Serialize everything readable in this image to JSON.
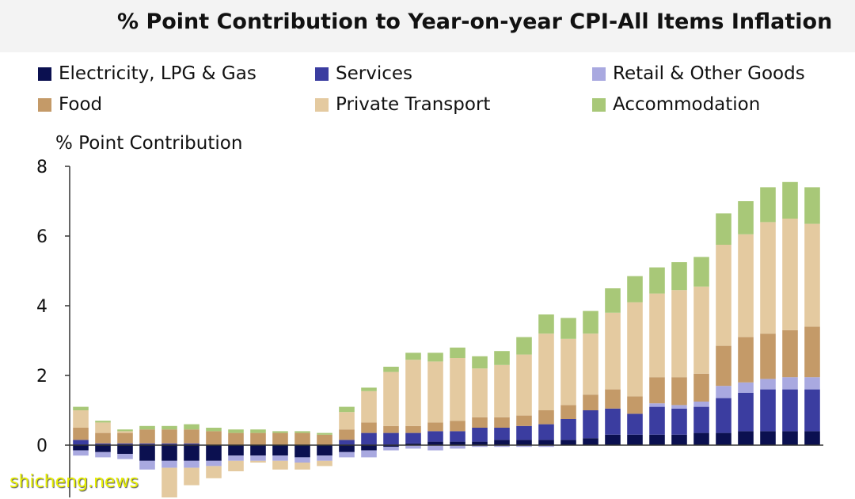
{
  "title": "% Point Contribution to Year-on-year CPI-All Items Inflation",
  "watermark": "shicheng.news",
  "chart_data": {
    "type": "bar",
    "stacked": true,
    "ylabel": "% Point Contribution",
    "ylim": [
      -1.5,
      8
    ],
    "yticks": [
      0,
      2,
      4,
      6,
      8
    ],
    "grid": false,
    "legend_position": "top",
    "series": [
      {
        "name": "Electricity, LPG & Gas",
        "color": "#0b1050",
        "values": [
          -0.15,
          -0.2,
          -0.25,
          -0.45,
          -0.45,
          -0.45,
          -0.45,
          -0.3,
          -0.3,
          -0.3,
          -0.35,
          -0.3,
          -0.2,
          -0.15,
          -0.05,
          0.05,
          0.1,
          0.1,
          0.1,
          0.15,
          0.15,
          0.15,
          0.15,
          0.2,
          0.3,
          0.3,
          0.3,
          0.3,
          0.35,
          0.35,
          0.4,
          0.4,
          0.4,
          0.4
        ]
      },
      {
        "name": "Services",
        "color": "#3b3da0",
        "values": [
          0.15,
          0.05,
          0.05,
          0.05,
          0.05,
          0.05,
          0.0,
          0.0,
          0.0,
          0.0,
          0.0,
          0.0,
          0.15,
          0.35,
          0.35,
          0.3,
          0.3,
          0.3,
          0.4,
          0.35,
          0.4,
          0.45,
          0.6,
          0.8,
          0.75,
          0.6,
          0.8,
          0.75,
          0.75,
          1.0,
          1.1,
          1.2,
          1.2,
          1.2
        ]
      },
      {
        "name": "Retail & Other Goods",
        "color": "#a9a9e0",
        "values": [
          -0.15,
          -0.15,
          -0.15,
          -0.25,
          -0.2,
          -0.2,
          -0.15,
          -0.15,
          -0.15,
          -0.15,
          -0.15,
          -0.15,
          -0.15,
          -0.2,
          -0.1,
          -0.1,
          -0.15,
          -0.1,
          -0.05,
          -0.05,
          -0.05,
          -0.05,
          0.0,
          0.0,
          0.0,
          0.0,
          0.1,
          0.1,
          0.15,
          0.35,
          0.3,
          0.3,
          0.35,
          0.35
        ]
      },
      {
        "name": "Food",
        "color": "#c49a68",
        "values": [
          0.35,
          0.3,
          0.3,
          0.4,
          0.4,
          0.4,
          0.4,
          0.35,
          0.35,
          0.35,
          0.35,
          0.3,
          0.3,
          0.3,
          0.2,
          0.2,
          0.25,
          0.3,
          0.3,
          0.3,
          0.3,
          0.4,
          0.4,
          0.45,
          0.55,
          0.5,
          0.75,
          0.8,
          0.8,
          1.15,
          1.3,
          1.3,
          1.35,
          1.45
        ]
      },
      {
        "name": "Private Transport",
        "color": "#e4caa0",
        "values": [
          0.5,
          0.3,
          0.05,
          0.0,
          -0.85,
          -0.5,
          -0.35,
          -0.3,
          -0.05,
          -0.25,
          -0.2,
          -0.15,
          0.5,
          0.9,
          1.55,
          1.9,
          1.75,
          1.8,
          1.4,
          1.5,
          1.75,
          2.2,
          1.9,
          1.75,
          2.2,
          2.7,
          2.4,
          2.5,
          2.5,
          2.9,
          2.95,
          3.2,
          3.2,
          2.95
        ]
      },
      {
        "name": "Accommodation",
        "color": "#a8c878",
        "values": [
          0.1,
          0.05,
          0.05,
          0.1,
          0.1,
          0.15,
          0.1,
          0.1,
          0.1,
          0.05,
          0.05,
          0.05,
          0.15,
          0.1,
          0.15,
          0.2,
          0.25,
          0.3,
          0.35,
          0.4,
          0.5,
          0.55,
          0.6,
          0.65,
          0.7,
          0.75,
          0.75,
          0.8,
          0.85,
          0.9,
          0.95,
          1.0,
          1.05,
          1.05
        ]
      }
    ]
  }
}
